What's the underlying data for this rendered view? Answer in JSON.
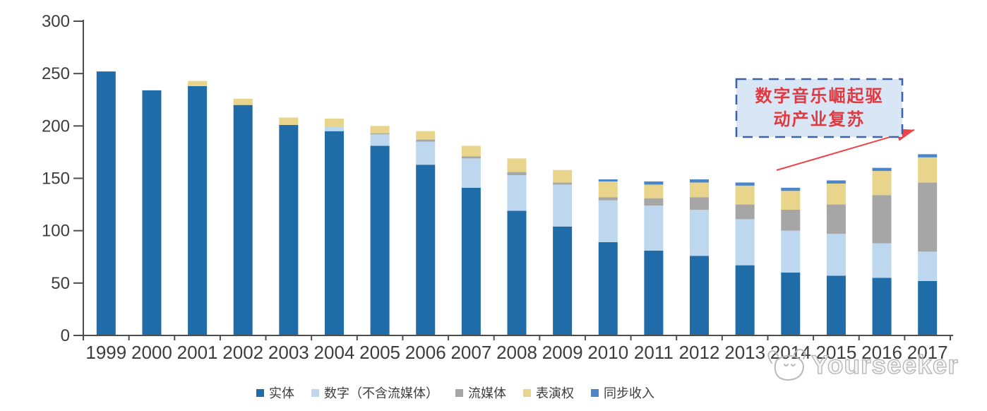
{
  "chart_data": {
    "type": "bar",
    "stacked": true,
    "title": "",
    "xlabel": "",
    "ylabel": "",
    "categories": [
      "1999",
      "2000",
      "2001",
      "2002",
      "2003",
      "2004",
      "2005",
      "2006",
      "2007",
      "2008",
      "2009",
      "2010",
      "2011",
      "2012",
      "2013",
      "2014",
      "2015",
      "2016",
      "2017"
    ],
    "series": [
      {
        "name": "实体",
        "color": "#1f6ca9",
        "values": [
          252,
          234,
          238,
          220,
          201,
          195,
          181,
          163,
          141,
          119,
          104,
          89,
          81,
          76,
          67,
          60,
          57,
          55,
          52
        ]
      },
      {
        "name": "数字（不含流媒体）",
        "color": "#bdd7ee",
        "values": [
          0,
          0,
          0,
          0,
          0,
          4,
          11,
          22,
          28,
          34,
          40,
          40,
          43,
          44,
          44,
          40,
          40,
          33,
          28
        ]
      },
      {
        "name": "流媒体",
        "color": "#a6a6a6",
        "values": [
          0,
          0,
          0,
          0,
          0,
          0,
          1,
          2,
          2,
          3,
          2,
          3,
          7,
          12,
          14,
          20,
          28,
          46,
          66
        ]
      },
      {
        "name": "表演权",
        "color": "#e8d58b",
        "values": [
          0,
          0,
          5,
          6,
          7,
          8,
          7,
          8,
          10,
          13,
          12,
          15,
          13,
          14,
          18,
          18,
          20,
          23,
          24
        ]
      },
      {
        "name": "同步收入",
        "color": "#4a86c8",
        "values": [
          0,
          0,
          0,
          0,
          0,
          0,
          0,
          0,
          0,
          0,
          0,
          2,
          3,
          3,
          3,
          3,
          3,
          3,
          3
        ]
      }
    ],
    "ylim": [
      0,
      300
    ],
    "yticks": [
      0,
      50,
      100,
      150,
      200,
      250,
      300
    ],
    "grid": false,
    "legend_position": "bottom",
    "axis_color": "#4d4d4d",
    "tick_label_color": "#3d3d3d"
  },
  "annotation": {
    "line1": "数字音乐崛起驱",
    "line2": "动产业复苏",
    "text_color": "#e2383f",
    "border_color": "#3f63a8",
    "fill_color": "#d9e6f5",
    "arrow_color": "#ef4146"
  },
  "watermark": {
    "brand": "Yourseeker"
  }
}
